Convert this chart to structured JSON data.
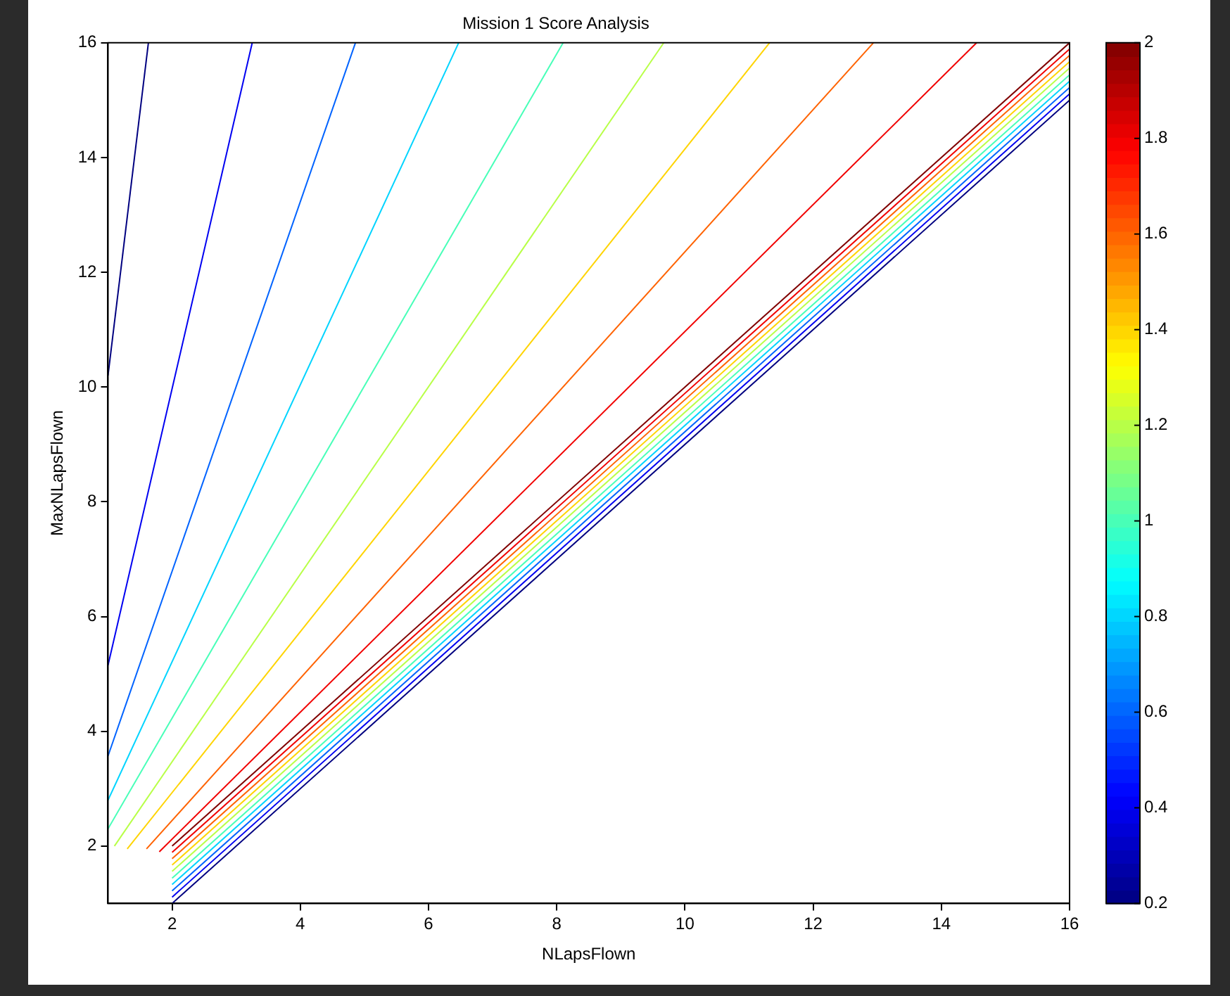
{
  "chart_data": {
    "type": "line",
    "title": "Mission 1 Score Analysis",
    "xlabel": "NLapsFlown",
    "ylabel": "MaxNLapsFlown",
    "xlim": [
      1,
      16
    ],
    "ylim": [
      1,
      16
    ],
    "xticks": [
      2,
      4,
      6,
      8,
      10,
      12,
      14,
      16
    ],
    "yticks": [
      2,
      4,
      6,
      8,
      10,
      12,
      14,
      16
    ],
    "grid": false,
    "legend": false,
    "clim": [
      0.2,
      2
    ],
    "cticks": [
      0.2,
      0.4,
      0.6,
      0.8,
      1,
      1.2,
      1.4,
      1.6,
      1.8,
      2
    ],
    "series": [
      {
        "color": "#000080",
        "x": [
          1,
          1.63
        ],
        "values": [
          10.2,
          16
        ]
      },
      {
        "color": "#0000f1",
        "x": [
          1,
          3.25
        ],
        "values": [
          5.15,
          16
        ]
      },
      {
        "color": "#0063ff",
        "x": [
          1,
          4.86
        ],
        "values": [
          3.57,
          16
        ]
      },
      {
        "color": "#00d4ff",
        "x": [
          1,
          6.47
        ],
        "values": [
          2.8,
          16
        ]
      },
      {
        "color": "#47ffb8",
        "x": [
          1,
          8.1
        ],
        "values": [
          2.3,
          16
        ]
      },
      {
        "color": "#b8ff47",
        "x": [
          1.1,
          9.67
        ],
        "values": [
          2,
          16
        ]
      },
      {
        "color": "#ffd400",
        "x": [
          1.3,
          11.32
        ],
        "values": [
          1.95,
          16
        ]
      },
      {
        "color": "#ff6300",
        "x": [
          1.6,
          12.94
        ],
        "values": [
          1.95,
          16
        ]
      },
      {
        "color": "#f10000",
        "x": [
          1.8,
          14.55
        ],
        "values": [
          1.9,
          16
        ]
      },
      {
        "color": "#800000",
        "x": [
          2,
          16
        ],
        "values": [
          2,
          16
        ]
      },
      {
        "color": "#f10000",
        "x": [
          2,
          16
        ],
        "values": [
          1.89,
          15.89
        ]
      },
      {
        "color": "#ff6300",
        "x": [
          2,
          16
        ],
        "values": [
          1.78,
          15.78
        ]
      },
      {
        "color": "#ffd400",
        "x": [
          2,
          16
        ],
        "values": [
          1.67,
          15.67
        ]
      },
      {
        "color": "#b8ff47",
        "x": [
          2,
          16
        ],
        "values": [
          1.56,
          15.56
        ]
      },
      {
        "color": "#47ffb8",
        "x": [
          2,
          16
        ],
        "values": [
          1.44,
          15.44
        ]
      },
      {
        "color": "#00d4ff",
        "x": [
          2,
          16
        ],
        "values": [
          1.33,
          15.33
        ]
      },
      {
        "color": "#0063ff",
        "x": [
          2,
          16
        ],
        "values": [
          1.22,
          15.22
        ]
      },
      {
        "color": "#0000f1",
        "x": [
          2,
          16
        ],
        "values": [
          1.11,
          15.11
        ]
      },
      {
        "color": "#000080",
        "x": [
          2,
          16
        ],
        "values": [
          1,
          15
        ]
      }
    ]
  }
}
